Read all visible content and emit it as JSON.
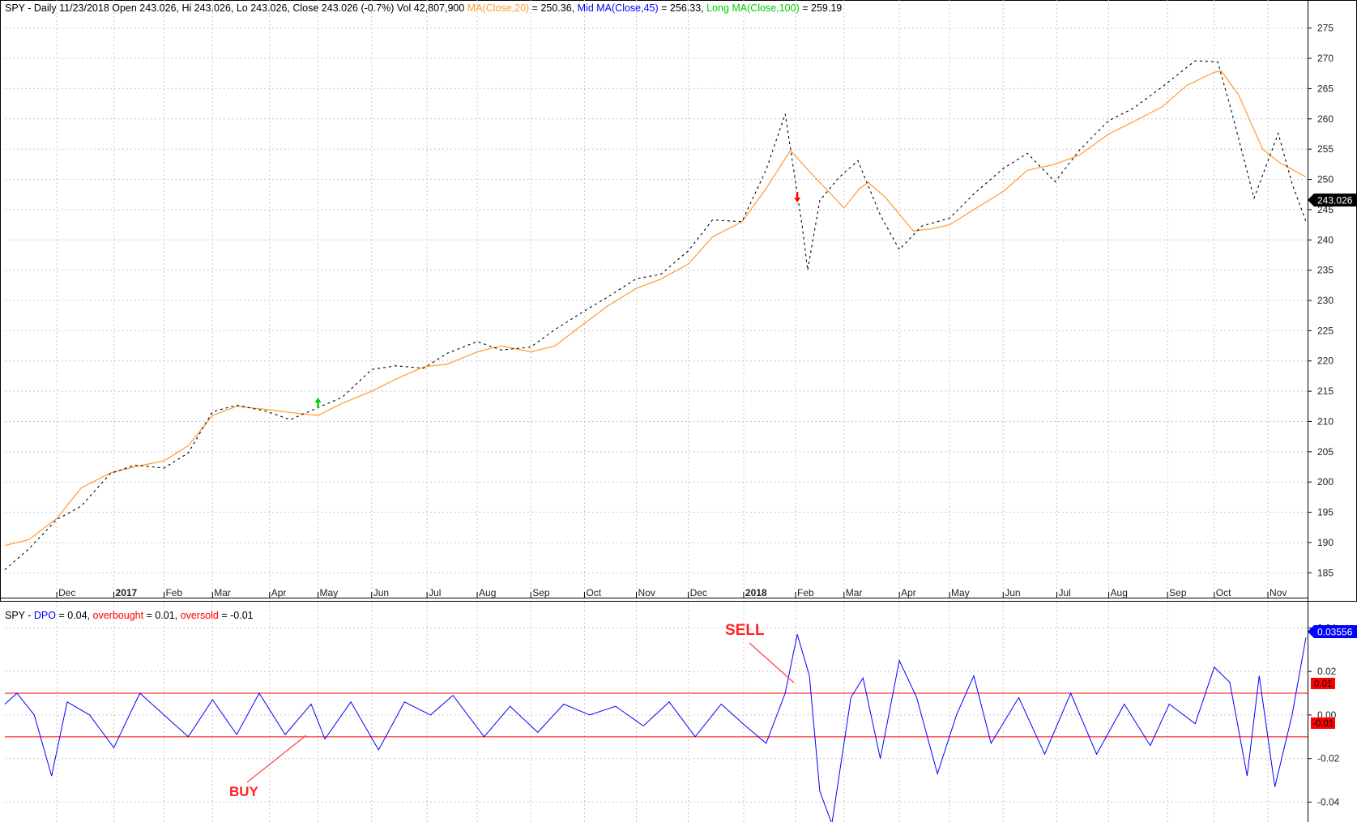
{
  "price_header": {
    "prefix": "SPY - Daily 11/23/2018 Open 243.026, Hi 243.026, Lo 243.026, Close 243.026 (-0.7%) Vol 42,807,900 ",
    "ma20_label": "MA(Close,20)",
    "ma20_value": " = 250.36, ",
    "mid_label": "Mid MA(Close,45)",
    "mid_value": " = 256.33, ",
    "long_label": "Long MA(Close,100)",
    "long_value": " = 259.19"
  },
  "dpo_header": {
    "prefix": "SPY - ",
    "dpo_label": "DPO",
    "dpo_value": " = 0.04, ",
    "ob_label": "overbought",
    "ob_value": " = 0.01, ",
    "os_label": "oversold",
    "os_value": " = -0.01"
  },
  "colors": {
    "price": "#000000",
    "ma20": "#ff9933",
    "mid": "#0000ff",
    "long": "#00cc00",
    "dpo": "#0000ff",
    "threshold": "#ff0000",
    "buy_arrow": "#00cc00",
    "sell_arrow": "#ff0000"
  },
  "annotations": {
    "sell_text": "SELL",
    "buy_text": "BUY",
    "last_price_tag": "243.026",
    "dpo_value_tag": "0.03556",
    "overbought_tag": "0.01",
    "oversold_tag": "-0.01"
  },
  "chart_data": [
    {
      "type": "line",
      "xlabel": "",
      "ylabel": "",
      "x_range": [
        "2016-11-01",
        "2018-11-23"
      ],
      "ylim": [
        182.5,
        277.5
      ],
      "y_ticks": [
        185,
        190,
        195,
        200,
        205,
        210,
        215,
        220,
        225,
        230,
        235,
        240,
        245,
        250,
        255,
        260,
        265,
        270,
        275
      ],
      "grid": true,
      "x_tick_labels": [
        {
          "label": "Dec",
          "date": "2016-12-01",
          "bold": false
        },
        {
          "label": "2017",
          "date": "2017-01-03",
          "bold": true
        },
        {
          "label": "Feb",
          "date": "2017-02-01",
          "bold": false
        },
        {
          "label": "Mar",
          "date": "2017-03-01",
          "bold": false
        },
        {
          "label": "Apr",
          "date": "2017-04-03",
          "bold": false
        },
        {
          "label": "May",
          "date": "2017-05-01",
          "bold": false
        },
        {
          "label": "Jun",
          "date": "2017-06-01",
          "bold": false
        },
        {
          "label": "Jul",
          "date": "2017-07-03",
          "bold": false
        },
        {
          "label": "Aug",
          "date": "2017-08-01",
          "bold": false
        },
        {
          "label": "Sep",
          "date": "2017-09-01",
          "bold": false
        },
        {
          "label": "Oct",
          "date": "2017-10-02",
          "bold": false
        },
        {
          "label": "Nov",
          "date": "2017-11-01",
          "bold": false
        },
        {
          "label": "Dec",
          "date": "2017-12-01",
          "bold": false
        },
        {
          "label": "2018",
          "date": "2018-01-02",
          "bold": true
        },
        {
          "label": "Feb",
          "date": "2018-02-01",
          "bold": false
        },
        {
          "label": "Mar",
          "date": "2018-03-01",
          "bold": false
        },
        {
          "label": "Apr",
          "date": "2018-04-02",
          "bold": false
        },
        {
          "label": "May",
          "date": "2018-05-01",
          "bold": false
        },
        {
          "label": "Jun",
          "date": "2018-06-01",
          "bold": false
        },
        {
          "label": "Jul",
          "date": "2018-07-02",
          "bold": false
        },
        {
          "label": "Aug",
          "date": "2018-08-01",
          "bold": false
        },
        {
          "label": "Sep",
          "date": "2018-09-04",
          "bold": false
        },
        {
          "label": "Oct",
          "date": "2018-10-01",
          "bold": false
        },
        {
          "label": "Nov",
          "date": "2018-11-01",
          "bold": false
        }
      ],
      "series": [
        {
          "name": "MA(Close,20)",
          "points": [
            [
              "2016-11-01",
              189.5
            ],
            [
              "2016-11-15",
              190.5
            ],
            [
              "2016-12-01",
              194
            ],
            [
              "2016-12-15",
              199
            ],
            [
              "2017-01-01",
              201.5
            ],
            [
              "2017-01-15",
              202.5
            ],
            [
              "2017-02-01",
              203.5
            ],
            [
              "2017-02-15",
              206
            ],
            [
              "2017-03-01",
              211
            ],
            [
              "2017-03-15",
              212.5
            ],
            [
              "2017-04-01",
              212
            ],
            [
              "2017-04-15",
              211.5
            ],
            [
              "2017-05-01",
              211
            ],
            [
              "2017-05-15",
              213
            ],
            [
              "2017-06-01",
              215
            ],
            [
              "2017-06-15",
              217
            ],
            [
              "2017-07-01",
              219
            ],
            [
              "2017-07-15",
              219.5
            ],
            [
              "2017-08-01",
              221.5
            ],
            [
              "2017-08-15",
              222.5
            ],
            [
              "2017-09-01",
              221.5
            ],
            [
              "2017-09-15",
              222.5
            ],
            [
              "2017-10-01",
              226
            ],
            [
              "2017-10-15",
              229
            ],
            [
              "2017-11-01",
              232
            ],
            [
              "2017-11-15",
              233.5
            ],
            [
              "2017-12-01",
              236
            ],
            [
              "2017-12-15",
              240.5
            ],
            [
              "2018-01-01",
              243
            ],
            [
              "2018-01-15",
              248.5
            ],
            [
              "2018-01-29",
              254.8
            ],
            [
              "2018-02-10",
              251
            ],
            [
              "2018-02-20",
              248
            ],
            [
              "2018-03-01",
              245.3
            ],
            [
              "2018-03-10",
              248.5
            ],
            [
              "2018-03-15",
              249.5
            ],
            [
              "2018-03-25",
              247
            ],
            [
              "2018-04-10",
              241.5
            ],
            [
              "2018-04-20",
              241.8
            ],
            [
              "2018-05-01",
              242.5
            ],
            [
              "2018-05-15",
              245
            ],
            [
              "2018-06-01",
              248
            ],
            [
              "2018-06-15",
              251.5
            ],
            [
              "2018-07-01",
              252.5
            ],
            [
              "2018-07-15",
              254
            ],
            [
              "2018-08-01",
              257.5
            ],
            [
              "2018-08-15",
              259.5
            ],
            [
              "2018-09-01",
              262
            ],
            [
              "2018-09-15",
              265.5
            ],
            [
              "2018-10-01",
              267.7
            ],
            [
              "2018-10-05",
              267.9
            ],
            [
              "2018-10-15",
              264
            ],
            [
              "2018-10-29",
              255
            ],
            [
              "2018-11-08",
              252.7
            ],
            [
              "2018-11-23",
              250.4
            ]
          ]
        },
        {
          "name": "SPY",
          "points": [
            [
              "2016-11-01",
              185.5
            ],
            [
              "2016-11-15",
              189
            ],
            [
              "2016-12-01",
              193.8
            ],
            [
              "2016-12-15",
              196
            ],
            [
              "2017-01-01",
              201.4
            ],
            [
              "2017-01-15",
              202.8
            ],
            [
              "2017-02-01",
              202.3
            ],
            [
              "2017-02-15",
              204.8
            ],
            [
              "2017-03-01",
              211.6
            ],
            [
              "2017-03-15",
              212.7
            ],
            [
              "2017-04-01",
              211.7
            ],
            [
              "2017-04-15",
              210.3
            ],
            [
              "2017-05-01",
              212.3
            ],
            [
              "2017-05-15",
              214
            ],
            [
              "2017-06-01",
              218.6
            ],
            [
              "2017-06-15",
              219.2
            ],
            [
              "2017-07-01",
              218.8
            ],
            [
              "2017-07-15",
              221.3
            ],
            [
              "2017-08-01",
              223.2
            ],
            [
              "2017-08-15",
              221.8
            ],
            [
              "2017-09-01",
              222.3
            ],
            [
              "2017-09-15",
              225.2
            ],
            [
              "2017-10-01",
              228.1
            ],
            [
              "2017-10-15",
              230.5
            ],
            [
              "2017-11-01",
              233.6
            ],
            [
              "2017-11-15",
              234.3
            ],
            [
              "2017-12-01",
              238.2
            ],
            [
              "2017-12-15",
              243.3
            ],
            [
              "2018-01-01",
              243
            ],
            [
              "2018-01-15",
              251.6
            ],
            [
              "2018-01-26",
              260.8
            ],
            [
              "2018-02-05",
              242
            ],
            [
              "2018-02-08",
              235
            ],
            [
              "2018-02-15",
              246.5
            ],
            [
              "2018-02-26",
              250.3
            ],
            [
              "2018-03-09",
              253.1
            ],
            [
              "2018-03-22",
              244.1
            ],
            [
              "2018-04-02",
              238.4
            ],
            [
              "2018-04-15",
              242.3
            ],
            [
              "2018-05-01",
              243.6
            ],
            [
              "2018-05-15",
              247.6
            ],
            [
              "2018-06-01",
              251.8
            ],
            [
              "2018-06-15",
              254.3
            ],
            [
              "2018-07-01",
              249.6
            ],
            [
              "2018-07-15",
              254.8
            ],
            [
              "2018-08-01",
              259.7
            ],
            [
              "2018-08-15",
              261.7
            ],
            [
              "2018-09-01",
              265.3
            ],
            [
              "2018-09-20",
              269.6
            ],
            [
              "2018-10-03",
              269.4
            ],
            [
              "2018-10-11",
              261.2
            ],
            [
              "2018-10-24",
              246.9
            ],
            [
              "2018-11-07",
              257.6
            ],
            [
              "2018-11-15",
              249.3
            ],
            [
              "2018-11-23",
              243.026
            ]
          ]
        }
      ],
      "signals": [
        {
          "type": "buy",
          "date": "2017-05-01",
          "value": 213
        },
        {
          "type": "sell",
          "date": "2018-02-02",
          "value": 247
        }
      ]
    },
    {
      "type": "line",
      "xlabel": "",
      "ylabel": "",
      "ylim": [
        -0.048,
        0.042
      ],
      "y_ticks": [
        -0.04,
        -0.02,
        0.0,
        0.02,
        0.04
      ],
      "y_tick_labels": [
        "-0.04",
        "-0.02",
        "0.00",
        "0.02",
        "0.04"
      ],
      "overbought": 0.01,
      "oversold": -0.01,
      "grid": true,
      "series": [
        {
          "name": "DPO",
          "points": [
            [
              "2016-11-01",
              0.005
            ],
            [
              "2016-11-08",
              0.01
            ],
            [
              "2016-11-18",
              0.0
            ],
            [
              "2016-11-28",
              -0.028
            ],
            [
              "2016-12-07",
              0.006
            ],
            [
              "2016-12-20",
              0.0
            ],
            [
              "2017-01-03",
              -0.015
            ],
            [
              "2017-01-18",
              0.01
            ],
            [
              "2017-02-01",
              0.0
            ],
            [
              "2017-02-15",
              -0.01
            ],
            [
              "2017-03-01",
              0.007
            ],
            [
              "2017-03-15",
              -0.009
            ],
            [
              "2017-03-28",
              0.01
            ],
            [
              "2017-04-12",
              -0.009
            ],
            [
              "2017-04-27",
              0.005
            ],
            [
              "2017-05-05",
              -0.011
            ],
            [
              "2017-05-20",
              0.006
            ],
            [
              "2017-06-05",
              -0.016
            ],
            [
              "2017-06-20",
              0.006
            ],
            [
              "2017-07-05",
              0.0
            ],
            [
              "2017-07-18",
              0.009
            ],
            [
              "2017-08-05",
              -0.01
            ],
            [
              "2017-08-20",
              0.004
            ],
            [
              "2017-09-05",
              -0.008
            ],
            [
              "2017-09-20",
              0.005
            ],
            [
              "2017-10-05",
              0.0
            ],
            [
              "2017-10-20",
              0.004
            ],
            [
              "2017-11-05",
              -0.005
            ],
            [
              "2017-11-20",
              0.006
            ],
            [
              "2017-12-05",
              -0.01
            ],
            [
              "2017-12-20",
              0.005
            ],
            [
              "2018-01-03",
              -0.005
            ],
            [
              "2018-01-15",
              -0.013
            ],
            [
              "2018-01-26",
              0.01
            ],
            [
              "2018-02-02",
              0.037
            ],
            [
              "2018-02-09",
              0.018
            ],
            [
              "2018-02-15",
              -0.035
            ],
            [
              "2018-02-22",
              -0.05
            ],
            [
              "2018-03-05",
              0.008
            ],
            [
              "2018-03-12",
              0.017
            ],
            [
              "2018-03-22",
              -0.02
            ],
            [
              "2018-04-02",
              0.025
            ],
            [
              "2018-04-12",
              0.008
            ],
            [
              "2018-04-24",
              -0.027
            ],
            [
              "2018-05-05",
              0.0
            ],
            [
              "2018-05-15",
              0.018
            ],
            [
              "2018-05-25",
              -0.013
            ],
            [
              "2018-06-10",
              0.008
            ],
            [
              "2018-06-25",
              -0.018
            ],
            [
              "2018-07-10",
              0.01
            ],
            [
              "2018-07-25",
              -0.018
            ],
            [
              "2018-08-10",
              0.005
            ],
            [
              "2018-08-25",
              -0.014
            ],
            [
              "2018-09-05",
              0.005
            ],
            [
              "2018-09-20",
              -0.004
            ],
            [
              "2018-10-01",
              0.022
            ],
            [
              "2018-10-10",
              0.015
            ],
            [
              "2018-10-20",
              -0.028
            ],
            [
              "2018-10-27",
              0.018
            ],
            [
              "2018-11-05",
              -0.033
            ],
            [
              "2018-11-15",
              0.0
            ],
            [
              "2018-11-23",
              0.0356
            ]
          ]
        }
      ]
    }
  ]
}
